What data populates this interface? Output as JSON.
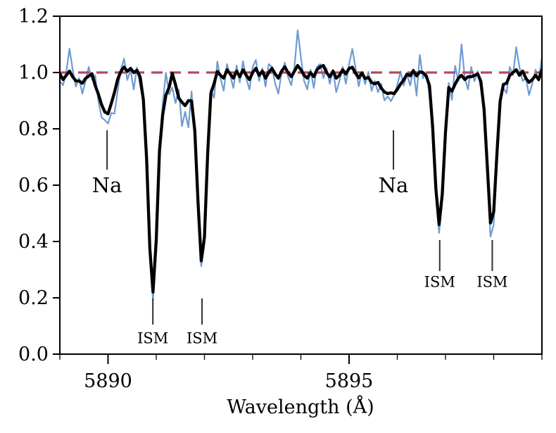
{
  "figure": {
    "background": "#ffffff",
    "description": "Normalized stellar spectrum around the Na D doublet with stellar Na and interstellar (ISM) absorption lines"
  },
  "chart_data": {
    "type": "line",
    "title": "",
    "xlabel": "Wavelength (Å)",
    "ylabel": "",
    "xlim": [
      5889.0,
      5899.0
    ],
    "ylim": [
      0.0,
      1.2
    ],
    "grid": false,
    "legend": "none",
    "x_major_ticks": [
      5890,
      5895
    ],
    "x_major_tick_labels": [
      "5890",
      "5895"
    ],
    "x_minor_tick_step": 1,
    "y_major_ticks": [
      0.0,
      0.2,
      0.4,
      0.6,
      0.8,
      1.0,
      1.2
    ],
    "y_major_tick_labels": [
      "0.0",
      "0.2",
      "0.4",
      "0.6",
      "0.8",
      "1.0",
      "1.2"
    ],
    "continuum_line": {
      "y": 1.0,
      "style": "dashed",
      "color": "#b3485f",
      "width": 3.2
    },
    "x0": 5889.0,
    "dx": 0.0666667,
    "n_points": 151,
    "noise_scale": 0.001,
    "absorption_lines": [
      {
        "label": "Na",
        "wavelength": 5889.98,
        "type": "stellar",
        "min_flux": 0.85
      },
      {
        "label": "ISM",
        "wavelength": 5890.93,
        "type": "interstellar",
        "min_flux": 0.22
      },
      {
        "label": "ISM",
        "wavelength": 5891.95,
        "type": "interstellar",
        "min_flux": 0.34
      },
      {
        "label": "Na",
        "wavelength": 5895.92,
        "type": "stellar",
        "min_flux": 0.93
      },
      {
        "label": "ISM",
        "wavelength": 5896.88,
        "type": "interstellar",
        "min_flux": 0.46
      },
      {
        "label": "ISM",
        "wavelength": 5897.97,
        "type": "interstellar",
        "min_flux": 0.46
      }
    ],
    "series": [
      {
        "name": "raw-spectrum",
        "color": "#6f9bd3",
        "width": 2.2,
        "model_lines": [
          {
            "center": 5889.97,
            "depth": 0.17,
            "sigma": 0.14
          },
          {
            "center": 5890.93,
            "depth": 0.81,
            "sigma": 0.095
          },
          {
            "center": 5891.58,
            "depth": 0.11,
            "sigma": 0.16
          },
          {
            "center": 5891.95,
            "depth": 0.68,
            "sigma": 0.09
          },
          {
            "center": 5895.87,
            "depth": 0.072,
            "sigma": 0.28
          },
          {
            "center": 5896.87,
            "depth": 0.57,
            "sigma": 0.095
          },
          {
            "center": 5897.96,
            "depth": 0.59,
            "sigma": 0.095
          }
        ],
        "noise": [
          -30,
          -45,
          0,
          85,
          10,
          -50,
          -20,
          -75,
          -30,
          25,
          -10,
          30,
          -20,
          -30,
          -5,
          -15,
          -10,
          -60,
          -20,
          30,
          55,
          -25,
          10,
          -60,
          20,
          -30,
          -10,
          -20,
          -10,
          0,
          15,
          30,
          -30,
          20,
          -60,
          -20,
          -50,
          25,
          -85,
          -30,
          -95,
          40,
          -30,
          -20,
          -10,
          -25,
          20,
          25,
          -75,
          40,
          -20,
          -65,
          30,
          -10,
          -55,
          25,
          -35,
          40,
          -20,
          -60,
          20,
          45,
          -30,
          15,
          -50,
          30,
          20,
          -40,
          -75,
          0,
          35,
          -15,
          -45,
          20,
          150,
          55,
          -30,
          -60,
          10,
          -55,
          20,
          30,
          -20,
          15,
          -40,
          10,
          -70,
          -30,
          20,
          -40,
          30,
          85,
          20,
          -45,
          10,
          -30,
          20,
          -40,
          5,
          -25,
          15,
          -35,
          -15,
          -30,
          -10,
          20,
          60,
          0,
          30,
          -20,
          30,
          -70,
          70,
          -15,
          10,
          -20,
          -10,
          0,
          0,
          10,
          20,
          30,
          -85,
          25,
          -30,
          100,
          -20,
          -60,
          20,
          -30,
          10,
          -20,
          0,
          -10,
          -15,
          0,
          10,
          20,
          -30,
          -70,
          20,
          -10,
          90,
          20,
          -30,
          -20,
          -80,
          -40,
          10,
          -30,
          55
        ]
      },
      {
        "name": "smoothed-spectrum",
        "color": "#000000",
        "width": 4.3,
        "model_lines": [
          {
            "center": 5889.97,
            "depth": 0.15,
            "sigma": 0.14
          },
          {
            "center": 5890.93,
            "depth": 0.78,
            "sigma": 0.095
          },
          {
            "center": 5891.58,
            "depth": 0.11,
            "sigma": 0.16
          },
          {
            "center": 5891.95,
            "depth": 0.66,
            "sigma": 0.09
          },
          {
            "center": 5895.87,
            "depth": 0.072,
            "sigma": 0.28
          },
          {
            "center": 5896.87,
            "depth": 0.54,
            "sigma": 0.095
          },
          {
            "center": 5897.96,
            "depth": 0.54,
            "sigma": 0.095
          }
        ],
        "noise": [
          -5,
          -25,
          -10,
          5,
          -15,
          -30,
          -30,
          -38,
          -20,
          -8,
          10,
          -10,
          -5,
          0,
          5,
          0,
          8,
          5,
          15,
          20,
          25,
          5,
          15,
          0,
          10,
          0,
          -5,
          0,
          0,
          0,
          0,
          0,
          -70,
          -60,
          -35,
          30,
          15,
          -5,
          0,
          -8,
          0,
          5,
          0,
          -10,
          -10,
          -15,
          0,
          10,
          -25,
          5,
          -10,
          -20,
          10,
          -5,
          -20,
          5,
          -15,
          10,
          -10,
          -25,
          0,
          15,
          -10,
          5,
          -20,
          0,
          15,
          -5,
          -20,
          5,
          20,
          0,
          -15,
          5,
          25,
          10,
          -10,
          -20,
          0,
          -15,
          10,
          20,
          25,
          0,
          -15,
          5,
          -20,
          -10,
          10,
          -5,
          15,
          20,
          0,
          -15,
          5,
          -10,
          0,
          -10,
          -5,
          10,
          0,
          -5,
          -5,
          0,
          -5,
          5,
          15,
          20,
          30,
          15,
          25,
          0,
          10,
          5,
          0,
          10,
          0,
          0,
          0,
          0,
          0,
          10,
          -55,
          -40,
          -20,
          -10,
          -25,
          -15,
          -15,
          -10,
          0,
          0,
          0,
          0,
          -15,
          0,
          0,
          0,
          -20,
          -35,
          -10,
          0,
          10,
          -10,
          5,
          -20,
          -35,
          -25,
          -10,
          -25,
          10
        ]
      }
    ],
    "annotations": [
      {
        "label": "Na",
        "x": 5889.98,
        "tick_y1": 0.655,
        "tick_y2": 0.795,
        "label_y": 0.6,
        "size": 29
      },
      {
        "label": "Na",
        "x": 5895.92,
        "tick_y1": 0.655,
        "tick_y2": 0.795,
        "label_y": 0.6,
        "size": 29
      },
      {
        "label": "ISM",
        "x": 5890.93,
        "tick_y1": 0.105,
        "tick_y2": 0.198,
        "label_y": 0.057,
        "size": 21
      },
      {
        "label": "ISM",
        "x": 5891.95,
        "tick_y1": 0.105,
        "tick_y2": 0.198,
        "label_y": 0.057,
        "size": 21
      },
      {
        "label": "ISM",
        "x": 5896.88,
        "tick_y1": 0.295,
        "tick_y2": 0.405,
        "label_y": 0.257,
        "size": 21
      },
      {
        "label": "ISM",
        "x": 5897.97,
        "tick_y1": 0.295,
        "tick_y2": 0.405,
        "label_y": 0.257,
        "size": 21
      }
    ],
    "axes_style": {
      "spine_color": "#000000",
      "spine_width": 2,
      "major_tick_len": 14,
      "minor_tick_len": 8,
      "y_tick_len": 10,
      "annotation_tick_color": "#303030",
      "tick_label_size": 27
    }
  }
}
